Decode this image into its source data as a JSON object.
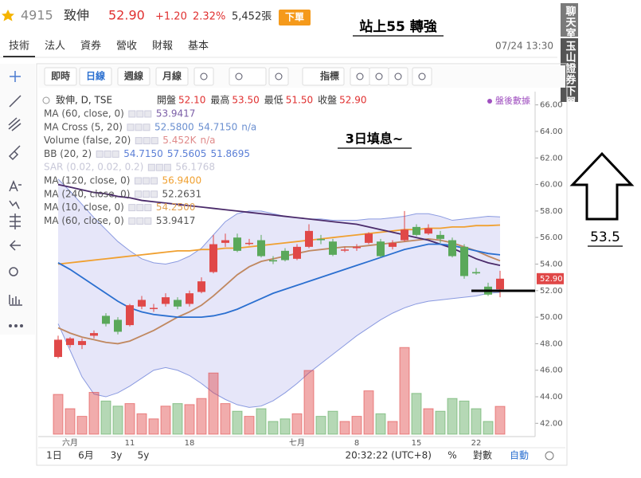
{
  "header": {
    "symbol": "4915",
    "name": "致伸",
    "price": "52.90",
    "change": "+1.20",
    "change_pct": "2.32%",
    "volume": "5,452張",
    "button": "下單"
  },
  "tabs": [
    "技術",
    "法人",
    "資券",
    "營收",
    "財報",
    "基本"
  ],
  "datetime": "07/24 13:30",
  "toolbar": [
    "即時",
    "日線",
    "週線",
    "月線",
    "指標"
  ],
  "side_labels": [
    "聊天室",
    "玉山證券下單"
  ],
  "post_market": "盤後數據",
  "annotations": {
    "title": "站上55 轉強",
    "note": "3日填息~",
    "target": "53.5"
  },
  "legend": {
    "symbol": "致伸, D, TSE",
    "ohlc": [
      {
        "label": "開盤",
        "value": "52.10"
      },
      {
        "label": "最高",
        "value": "53.50"
      },
      {
        "label": "最低",
        "value": "51.50"
      },
      {
        "label": "收盤",
        "value": "52.90"
      }
    ],
    "rows": [
      {
        "name": "MA (60, close, 0)",
        "values": [
          "53.9417"
        ],
        "color": "#7b5ea7"
      },
      {
        "name": "MA Cross (5, 20)",
        "values": [
          "52.5800",
          "54.7150",
          "n/a"
        ],
        "color": "#6a8fd0"
      },
      {
        "name": "Volume (false, 20)",
        "values": [
          "5.452K",
          "n/a"
        ],
        "color": "#e08a8a"
      },
      {
        "name": "BB (20, 2)",
        "values": [
          "54.7150",
          "57.5605",
          "51.8695"
        ],
        "color": "#5b7fd6"
      },
      {
        "name": "SAR (0.02, 0.02, 0.2)",
        "values": [
          "56.1768"
        ],
        "color": "#c8c8d8"
      },
      {
        "name": "MA (120, close, 0)",
        "values": [
          "56.9400"
        ],
        "color": "#f0a030"
      },
      {
        "name": "MA (240, close, 0)",
        "values": [
          "52.2631"
        ],
        "color": "#555555"
      },
      {
        "name": "MA (10, close, 0)",
        "values": [
          "54.2500"
        ],
        "color": "#e0a050"
      },
      {
        "name": "MA (60, close, 0)",
        "values": [
          "53.9417"
        ],
        "color": "#555555"
      }
    ]
  },
  "last_price_tag": "52.90",
  "bottom": {
    "ranges": [
      "1日",
      "6月",
      "3y",
      "5y"
    ],
    "clock": "20:32:22 (UTC+8)",
    "options": [
      "%",
      "對數",
      "自動"
    ]
  },
  "chart_data": {
    "type": "candlestick",
    "categories": [
      null,
      "六月",
      null,
      null,
      null,
      null,
      "11",
      null,
      null,
      null,
      null,
      "18",
      null,
      null,
      null,
      null,
      null,
      null,
      null,
      null,
      "七月",
      null,
      null,
      null,
      null,
      "8",
      null,
      null,
      null,
      null,
      "15",
      null,
      null,
      null,
      null,
      "22",
      null,
      null
    ],
    "open": [
      47.0,
      47.9,
      47.9,
      48.6,
      50.1,
      49.8,
      49.4,
      50.8,
      50.7,
      51.0,
      51.3,
      51.0,
      51.9,
      53.4,
      55.6,
      56.0,
      55.6,
      55.8,
      54.3,
      55.0,
      54.4,
      55.3,
      55.9,
      55.7,
      55.1,
      55.2,
      55.6,
      55.7,
      55.3,
      55.8,
      56.8,
      56.3,
      56.2,
      55.8,
      55.3,
      53.4,
      52.3,
      52.1
    ],
    "high": [
      48.6,
      48.5,
      48.4,
      49.0,
      50.3,
      50.0,
      51.0,
      51.6,
      51.0,
      51.8,
      51.5,
      52.0,
      53.0,
      56.2,
      56.3,
      56.3,
      55.9,
      56.2,
      54.6,
      55.2,
      55.5,
      57.0,
      56.2,
      55.9,
      55.3,
      55.5,
      56.4,
      55.9,
      55.8,
      58.0,
      57.0,
      57.0,
      56.5,
      56.0,
      55.5,
      53.7,
      52.6,
      53.5
    ],
    "low": [
      46.9,
      47.7,
      47.6,
      48.4,
      49.3,
      48.7,
      49.3,
      50.6,
      50.4,
      50.8,
      50.6,
      50.8,
      51.8,
      53.3,
      55.3,
      54.9,
      55.4,
      54.5,
      54.0,
      54.2,
      54.3,
      55.2,
      55.5,
      54.6,
      54.9,
      55.0,
      55.5,
      54.5,
      55.1,
      55.7,
      56.1,
      56.2,
      55.6,
      54.5,
      52.9,
      53.2,
      51.6,
      51.5
    ],
    "close": [
      48.3,
      48.4,
      48.2,
      48.8,
      49.5,
      48.9,
      50.9,
      51.3,
      50.7,
      51.5,
      50.8,
      51.8,
      52.7,
      55.5,
      55.8,
      55.0,
      55.6,
      54.6,
      54.2,
      54.3,
      55.3,
      56.5,
      55.8,
      54.7,
      55.1,
      55.3,
      56.3,
      54.6,
      55.6,
      56.6,
      56.2,
      56.7,
      55.9,
      54.6,
      53.1,
      53.3,
      51.7,
      52.9
    ],
    "volume": [
      7.8,
      5.0,
      3.5,
      8.2,
      6.5,
      5.5,
      6.0,
      4.0,
      3.0,
      5.5,
      6.0,
      5.8,
      7.0,
      12.0,
      6.0,
      4.5,
      3.5,
      5.0,
      2.5,
      3.0,
      4.0,
      12.5,
      3.5,
      4.5,
      2.5,
      3.5,
      8.5,
      4.0,
      2.5,
      17.0,
      8.0,
      5.0,
      4.5,
      7.0,
      6.5,
      5.0,
      2.5,
      5.452
    ],
    "volume_lim": [
      0,
      20
    ],
    "up_color": "#e04848",
    "down_color": "#5aa85a",
    "bands": {
      "color": "#b8b8ee",
      "upper": [
        60.4,
        59.5,
        58.5,
        57.5,
        56.6,
        55.7,
        55.0,
        54.4,
        54.1,
        54.0,
        54.2,
        54.6,
        55.2,
        56.2,
        57.2,
        57.8,
        58.0,
        58.0,
        57.8,
        57.6,
        57.5,
        57.4,
        57.4,
        57.3,
        57.3,
        57.3,
        57.4,
        57.4,
        57.5,
        57.6,
        57.8,
        57.8,
        57.6,
        57.3,
        57.4,
        57.5,
        57.6,
        57.56
      ],
      "lower": [
        49.5,
        47.5,
        45.5,
        44.2,
        44.0,
        44.3,
        44.8,
        45.4,
        46.0,
        46.2,
        46.0,
        45.6,
        45.0,
        44.3,
        43.8,
        43.4,
        43.2,
        43.3,
        43.7,
        44.3,
        45.0,
        45.8,
        46.5,
        47.2,
        47.9,
        48.6,
        49.2,
        49.8,
        50.3,
        50.7,
        51.0,
        51.2,
        51.3,
        51.4,
        51.5,
        51.6,
        51.8,
        51.87
      ]
    },
    "lines": [
      {
        "color": "#f0a030",
        "values": [
          54.0,
          54.1,
          54.2,
          54.3,
          54.4,
          54.5,
          54.6,
          54.7,
          54.8,
          54.9,
          55.0,
          55.0,
          55.1,
          55.1,
          55.2,
          55.2,
          55.3,
          55.4,
          55.5,
          55.6,
          55.7,
          55.8,
          55.9,
          56.0,
          56.1,
          56.2,
          56.3,
          56.4,
          56.5,
          56.6,
          56.6,
          56.7,
          56.7,
          56.8,
          56.8,
          56.9,
          56.9,
          56.94
        ]
      },
      {
        "color": "#c08860",
        "values": [
          49.2,
          48.8,
          48.5,
          48.3,
          48.1,
          48.0,
          48.2,
          48.6,
          49.0,
          49.5,
          50.0,
          50.4,
          50.9,
          51.6,
          52.4,
          53.2,
          53.8,
          54.2,
          54.4,
          54.6,
          54.8,
          55.0,
          55.1,
          55.2,
          55.3,
          55.3,
          55.4,
          55.5,
          55.6,
          55.7,
          55.8,
          55.9,
          55.8,
          55.6,
          55.3,
          55.0,
          54.6,
          54.25
        ]
      },
      {
        "color": "#4a2a6a",
        "values": [
          60.0,
          59.8,
          59.6,
          59.4,
          59.3,
          59.1,
          59.0,
          58.8,
          58.7,
          58.6,
          58.5,
          58.4,
          58.3,
          58.2,
          58.1,
          58.0,
          57.9,
          57.8,
          57.7,
          57.6,
          57.5,
          57.4,
          57.3,
          57.2,
          57.1,
          57.0,
          56.8,
          56.6,
          56.4,
          56.2,
          56.0,
          55.8,
          55.5,
          55.2,
          54.8,
          54.4,
          54.1,
          53.9
        ]
      },
      {
        "color": "#2a6fd0",
        "values": [
          54.1,
          53.6,
          53.0,
          52.4,
          51.8,
          51.2,
          50.7,
          50.4,
          50.2,
          50.1,
          50.0,
          50.0,
          50.0,
          50.1,
          50.3,
          50.6,
          51.0,
          51.4,
          51.8,
          52.1,
          52.4,
          52.7,
          53.0,
          53.3,
          53.6,
          53.9,
          54.2,
          54.5,
          54.8,
          55.1,
          55.3,
          55.5,
          55.5,
          55.4,
          55.2,
          55.0,
          54.8,
          54.7
        ]
      }
    ],
    "ylim": [
      41,
      67
    ],
    "yticks": [
      {
        "value": 42,
        "label": "42.00"
      },
      {
        "value": 44,
        "label": "44.00"
      },
      {
        "value": 46,
        "label": "46.00"
      },
      {
        "value": 48,
        "label": "48.00"
      },
      {
        "value": 50,
        "label": "50.00"
      },
      {
        "value": 52,
        "label": "52.00"
      },
      {
        "value": 54,
        "label": "54.00"
      },
      {
        "value": 56,
        "label": "56.00"
      },
      {
        "value": 58,
        "label": "58.00"
      },
      {
        "value": 60,
        "label": "60.00"
      },
      {
        "value": 62,
        "label": "62.00"
      },
      {
        "value": 64,
        "label": "64.00"
      },
      {
        "value": 66,
        "label": "66.00"
      }
    ]
  }
}
